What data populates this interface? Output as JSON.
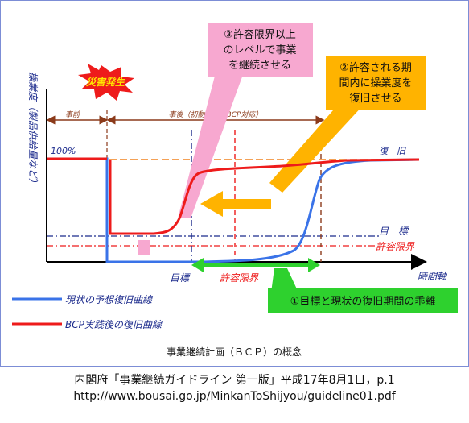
{
  "diagram": {
    "caption": "事業継続計画（ＢＣＰ）の概念",
    "y_axis_label": "操業度（製品供給量など）",
    "x_axis_label": "時間軸",
    "level_100": "100%",
    "recovery_label": "復　旧",
    "target_label": "目　標",
    "tolerance_label": "許容限界",
    "disaster_label": "災害発生",
    "phase_before": "事前",
    "phase_after": "事後（初動対応＆BCP対応）",
    "bottom_target": "目標",
    "bottom_tolerance": "許容限界",
    "callout_pink": [
      "③許容限界以上",
      "のレベルで事業",
      "を継続させる"
    ],
    "callout_yellow": [
      "②許容される期",
      "間内に操業度を",
      "復旧させる"
    ],
    "callout_green": "①目標と現状の復旧期間の乖離",
    "legend": [
      {
        "label": "現状の予想復旧曲線",
        "color": "#3a73e8"
      },
      {
        "label": "BCP実践後の復旧曲線",
        "color": "#ee1b1b"
      }
    ],
    "colors": {
      "blue": "#3a73e8",
      "red": "#ee1b1b",
      "orange": "#f0821e",
      "navy": "#1b2a8c",
      "brown": "#8b3a1a",
      "pink": "#f7a8d0",
      "yellow": "#ffb300",
      "green": "#2ed12e"
    }
  },
  "source": {
    "line1": "内閣府「事業継続ガイドライン 第一版」平成17年8月1日，p.1",
    "line2": "http://www.bousai.go.jp/MinkanToShijyou/guideline01.pdf"
  }
}
